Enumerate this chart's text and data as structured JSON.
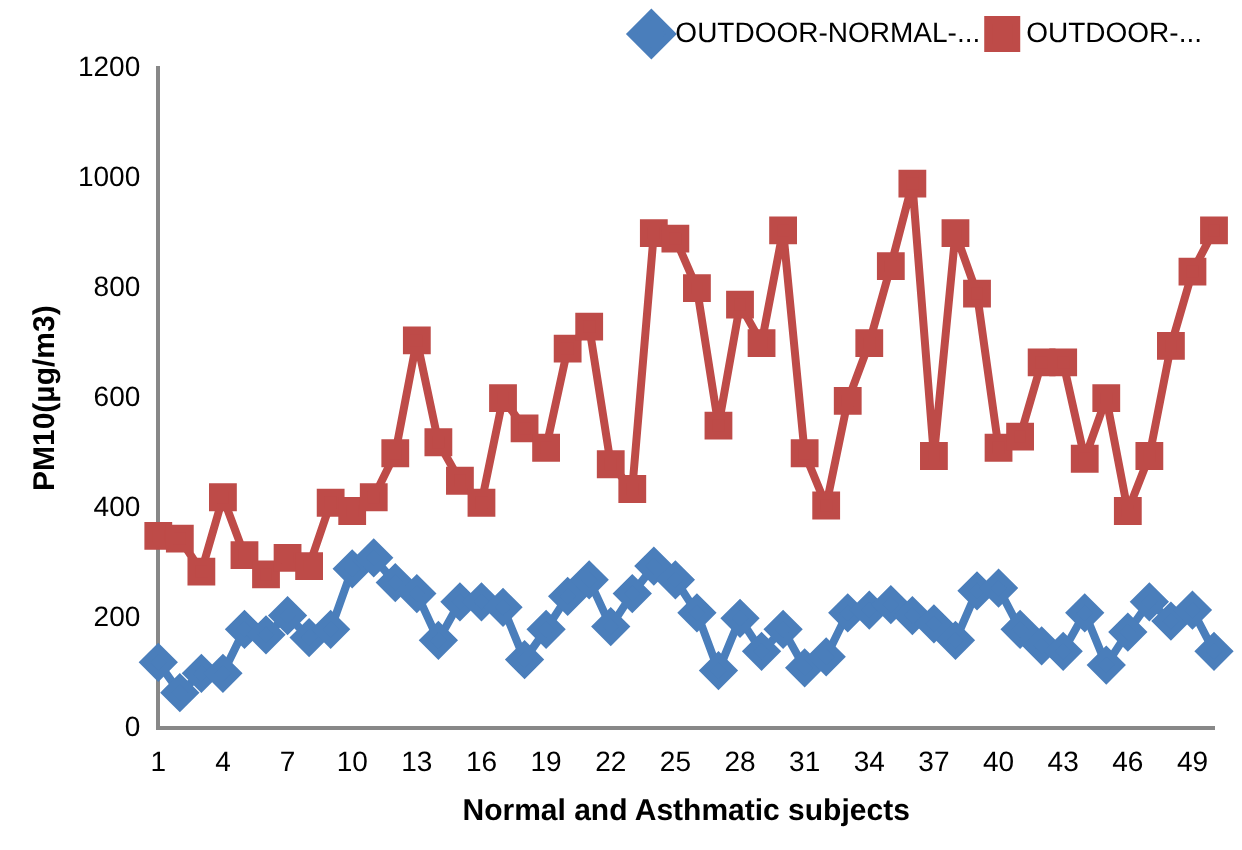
{
  "chart_data": {
    "type": "line",
    "xlabel": "Normal and Asthmatic subjects",
    "ylabel": "PM10(µg/m3)",
    "categories": [
      "1",
      null,
      null,
      "4",
      null,
      null,
      "7",
      null,
      null,
      "10",
      null,
      null,
      "13",
      null,
      null,
      "16",
      null,
      null,
      "19",
      null,
      null,
      "22",
      null,
      null,
      "25",
      null,
      null,
      "28",
      null,
      null,
      "31",
      null,
      null,
      "34",
      null,
      null,
      "37",
      null,
      null,
      "40",
      null,
      null,
      "43",
      null,
      null,
      "46",
      null,
      null,
      "49",
      null
    ],
    "ylim": [
      0,
      1200
    ],
    "yticks": [
      0,
      200,
      400,
      600,
      800,
      1000,
      1200
    ],
    "grid": false,
    "legend": "top right",
    "line_style": "solid",
    "series": [
      {
        "name": "OUTDOOR-NORMAL-...",
        "color": "#4a7ebb",
        "marker": "diamond",
        "values": [
          120,
          65,
          100,
          100,
          180,
          170,
          205,
          165,
          180,
          290,
          310,
          265,
          245,
          160,
          230,
          230,
          220,
          125,
          180,
          240,
          270,
          185,
          245,
          295,
          270,
          210,
          105,
          200,
          140,
          180,
          110,
          130,
          210,
          215,
          225,
          205,
          190,
          160,
          250,
          255,
          180,
          150,
          140,
          210,
          115,
          175,
          230,
          195,
          215,
          140
        ]
      },
      {
        "name": "OUTDOOR-...",
        "color": "#be4b48",
        "marker": "square",
        "values": [
          350,
          345,
          285,
          420,
          315,
          280,
          310,
          295,
          410,
          395,
          420,
          500,
          705,
          520,
          450,
          410,
          600,
          545,
          510,
          690,
          730,
          480,
          435,
          900,
          890,
          800,
          550,
          770,
          700,
          905,
          500,
          405,
          595,
          700,
          840,
          990,
          495,
          900,
          790,
          510,
          530,
          665,
          665,
          490,
          600,
          395,
          495,
          695,
          830,
          905
        ]
      }
    ]
  }
}
